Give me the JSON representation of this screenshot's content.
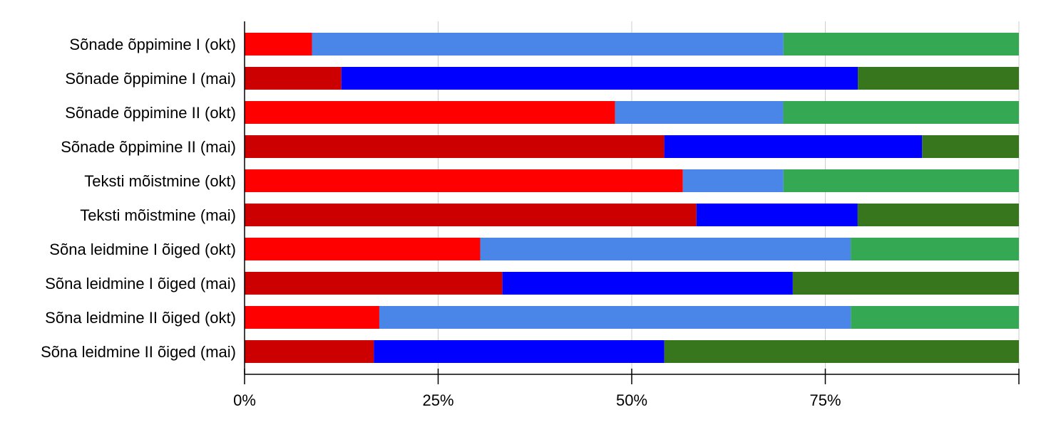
{
  "chart_data": {
    "type": "bar",
    "orientation": "horizontal",
    "stacked": "percent",
    "categories": [
      "Sõnade õppimine I (okt)",
      "Sõnade õppimine I (mai)",
      "Sõnade õppimine II (okt)",
      "Sõnade õppimine II (mai)",
      "Teksti mõistmine (okt)",
      "Teksti mõistmine (mai)",
      "Sõna leidmine I õiged (okt)",
      "Sõna leidmine I õiged (mai)",
      "Sõna leidmine II õiged (okt)",
      "Sõna leidmine II õiged (mai)"
    ],
    "series": [
      {
        "values": [
          8.7,
          12.5,
          47.8,
          54.2,
          56.6,
          58.3,
          30.4,
          33.3,
          17.4,
          16.7
        ],
        "colors": [
          "#ff0000",
          "#cc0000",
          "#ff0000",
          "#cc0000",
          "#ff0000",
          "#cc0000",
          "#ff0000",
          "#cc0000",
          "#ff0000",
          "#cc0000"
        ]
      },
      {
        "values": [
          60.9,
          66.7,
          21.7,
          33.3,
          13.0,
          20.8,
          47.8,
          37.5,
          60.9,
          37.5
        ],
        "colors": [
          "#4a86e8",
          "#0000ff",
          "#4a86e8",
          "#0000ff",
          "#4a86e8",
          "#0000ff",
          "#4a86e8",
          "#0000ff",
          "#4a86e8",
          "#0000ff"
        ]
      },
      {
        "values": [
          30.4,
          20.8,
          30.4,
          12.5,
          30.4,
          20.8,
          21.7,
          29.2,
          21.7,
          45.8
        ],
        "colors": [
          "#34a853",
          "#38761d",
          "#34a853",
          "#38761d",
          "#34a853",
          "#38761d",
          "#34a853",
          "#38761d",
          "#34a853",
          "#38761d"
        ]
      }
    ],
    "xlim": [
      0,
      100
    ],
    "x_ticks": [
      0,
      25,
      50,
      75
    ],
    "x_tick_labels": [
      "0%",
      "25%",
      "50%",
      "75%"
    ],
    "grid": true,
    "legend": "none",
    "title": "",
    "xlabel": "",
    "ylabel": ""
  }
}
